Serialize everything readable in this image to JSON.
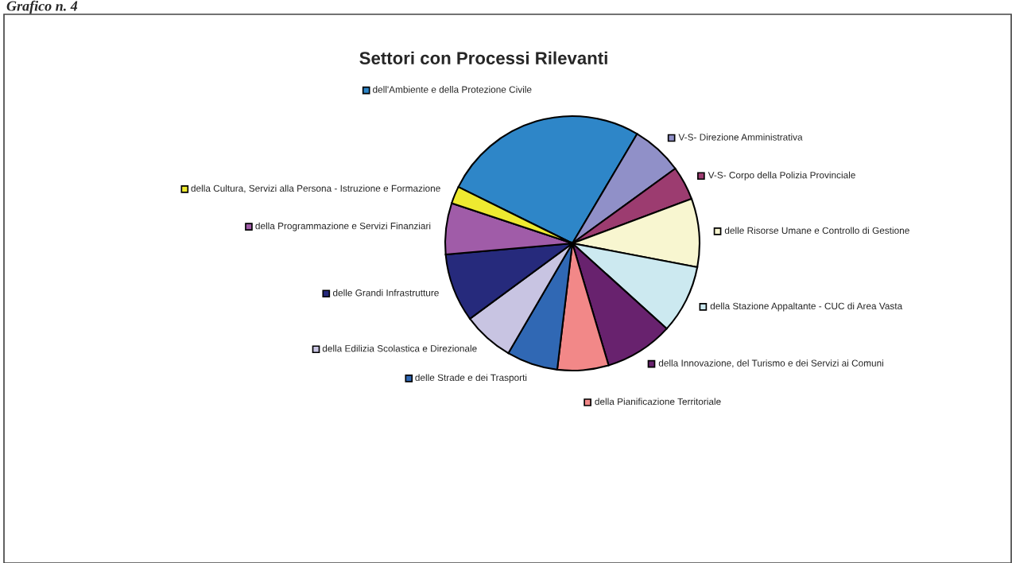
{
  "chart_data": {
    "type": "pie",
    "title": "Settori con Processi Rilevanti",
    "annotations": [
      "Grafico n. 4"
    ],
    "categories": [
      "dell'Ambiente e della Protezione Civile",
      "V-S- Direzione Amministrativa",
      "V-S- Corpo della Polizia Provinciale",
      "delle Risorse Umane e Controllo di Gestione",
      "della Stazione Appaltante - CUC di Area Vasta",
      "della Innovazione, del Turismo e dei Servizi ai Comuni",
      "della Pianificazione Territoriale",
      "delle Strade e dei Trasporti",
      "della Edilizia Scolastica e Direzionale",
      "delle Grandi Infrastrutture",
      "della Programmazione e Servizi Finanziari",
      "della Cultura, Servizi alla Persona - Istruzione e Formazione"
    ],
    "values": [
      26.2,
      6.5,
      4.3,
      8.7,
      8.7,
      8.7,
      6.5,
      6.5,
      6.5,
      8.7,
      6.5,
      2.2
    ],
    "colors": [
      "#2e86c8",
      "#9090c8",
      "#9c3c70",
      "#f8f6d0",
      "#cce9f0",
      "#68226e",
      "#f28888",
      "#3068b4",
      "#c8c4e2",
      "#262a7c",
      "#a05ca8",
      "#eeea30"
    ],
    "legend": "bottom left"
  }
}
